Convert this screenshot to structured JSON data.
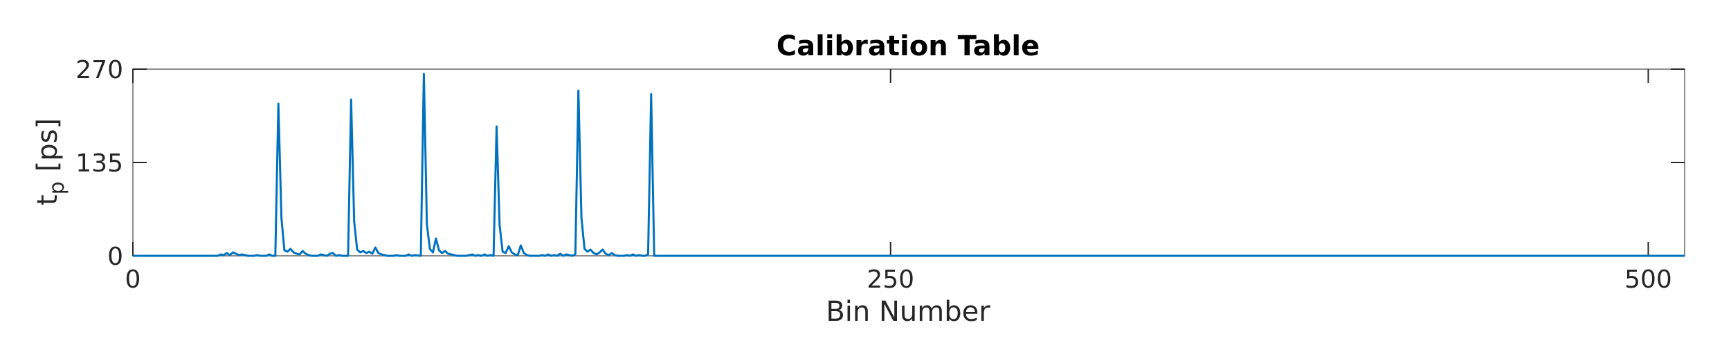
{
  "chart_data": {
    "type": "line",
    "title": "Calibration Table",
    "xlabel": "Bin Number",
    "ylabel_main": "t",
    "ylabel_sub": "p",
    "ylabel_unit": "[ps]",
    "xlim": [
      0,
      512
    ],
    "ylim": [
      0,
      270
    ],
    "xticks": [
      0,
      250,
      500
    ],
    "yticks": [
      0,
      135,
      270
    ],
    "grid": false,
    "line_color": "#0072BD",
    "series": [
      {
        "points": [
          [
            0,
            0
          ],
          [
            28,
            0
          ],
          [
            29,
            2
          ],
          [
            30,
            1
          ],
          [
            31,
            4
          ],
          [
            32,
            1
          ],
          [
            33,
            5
          ],
          [
            34,
            3
          ],
          [
            35,
            1
          ],
          [
            36,
            2
          ],
          [
            37,
            1
          ],
          [
            38,
            0
          ],
          [
            40,
            0
          ],
          [
            41,
            1
          ],
          [
            42,
            0
          ],
          [
            44,
            0
          ],
          [
            45,
            2
          ],
          [
            46,
            0
          ],
          [
            47,
            0
          ],
          [
            48,
            220
          ],
          [
            49,
            55
          ],
          [
            50,
            8
          ],
          [
            51,
            6
          ],
          [
            52,
            10
          ],
          [
            53,
            5
          ],
          [
            54,
            3
          ],
          [
            55,
            2
          ],
          [
            56,
            7
          ],
          [
            57,
            3
          ],
          [
            58,
            1
          ],
          [
            59,
            0
          ],
          [
            61,
            0
          ],
          [
            62,
            2
          ],
          [
            63,
            1
          ],
          [
            64,
            0
          ],
          [
            65,
            3
          ],
          [
            66,
            4
          ],
          [
            67,
            0
          ],
          [
            68,
            1
          ],
          [
            69,
            0
          ],
          [
            70,
            0
          ],
          [
            71,
            0
          ],
          [
            72,
            226
          ],
          [
            73,
            50
          ],
          [
            74,
            9
          ],
          [
            75,
            5
          ],
          [
            76,
            7
          ],
          [
            77,
            4
          ],
          [
            78,
            6
          ],
          [
            79,
            3
          ],
          [
            80,
            12
          ],
          [
            81,
            4
          ],
          [
            82,
            2
          ],
          [
            83,
            1
          ],
          [
            84,
            0
          ],
          [
            86,
            0
          ],
          [
            87,
            1
          ],
          [
            88,
            0
          ],
          [
            90,
            0
          ],
          [
            91,
            2
          ],
          [
            92,
            0
          ],
          [
            93,
            1
          ],
          [
            95,
            0
          ],
          [
            96,
            263
          ],
          [
            97,
            45
          ],
          [
            98,
            10
          ],
          [
            99,
            5
          ],
          [
            100,
            25
          ],
          [
            101,
            8
          ],
          [
            102,
            4
          ],
          [
            103,
            7
          ],
          [
            104,
            3
          ],
          [
            105,
            2
          ],
          [
            106,
            1
          ],
          [
            107,
            0
          ],
          [
            110,
            0
          ],
          [
            111,
            1
          ],
          [
            112,
            2
          ],
          [
            113,
            0
          ],
          [
            114,
            1
          ],
          [
            115,
            0
          ],
          [
            116,
            2
          ],
          [
            117,
            0
          ],
          [
            118,
            1
          ],
          [
            119,
            0
          ],
          [
            120,
            187
          ],
          [
            121,
            45
          ],
          [
            122,
            6
          ],
          [
            123,
            4
          ],
          [
            124,
            14
          ],
          [
            125,
            5
          ],
          [
            126,
            2
          ],
          [
            127,
            1
          ],
          [
            128,
            15
          ],
          [
            129,
            4
          ],
          [
            130,
            1
          ],
          [
            131,
            0
          ],
          [
            134,
            0
          ],
          [
            135,
            1
          ],
          [
            136,
            0
          ],
          [
            137,
            2
          ],
          [
            138,
            0
          ],
          [
            139,
            1
          ],
          [
            140,
            0
          ],
          [
            141,
            3
          ],
          [
            142,
            0
          ],
          [
            143,
            2
          ],
          [
            144,
            1
          ],
          [
            145,
            0
          ],
          [
            146,
            2
          ],
          [
            147,
            239
          ],
          [
            148,
            55
          ],
          [
            149,
            10
          ],
          [
            150,
            6
          ],
          [
            151,
            9
          ],
          [
            152,
            4
          ],
          [
            153,
            2
          ],
          [
            154,
            5
          ],
          [
            155,
            9
          ],
          [
            156,
            3
          ],
          [
            157,
            1
          ],
          [
            158,
            4
          ],
          [
            159,
            1
          ],
          [
            160,
            0
          ],
          [
            162,
            0
          ],
          [
            163,
            1
          ],
          [
            164,
            0
          ],
          [
            165,
            2
          ],
          [
            166,
            0
          ],
          [
            167,
            1
          ],
          [
            168,
            0
          ],
          [
            169,
            0
          ],
          [
            170,
            2
          ],
          [
            171,
            234
          ],
          [
            172,
            0
          ],
          [
            175,
            0
          ],
          [
            512,
            0
          ]
        ]
      }
    ]
  }
}
